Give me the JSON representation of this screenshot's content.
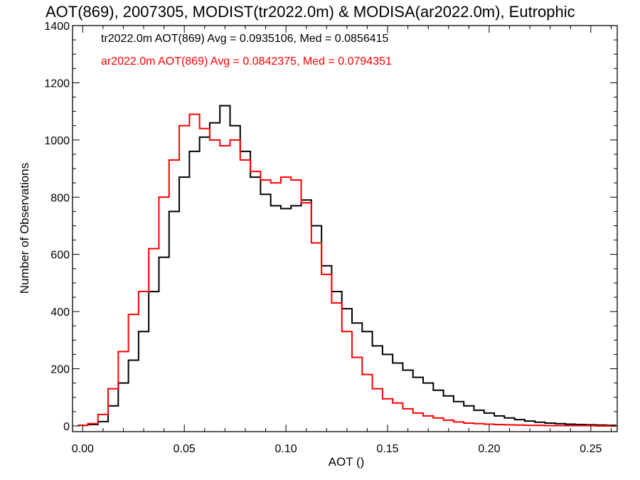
{
  "chart_data": {
    "type": "step-histogram",
    "title": "AOT(869), 2007305, MODIST(tr2022.0m) & MODISA(ar2022.0m), Eutrophic",
    "xlabel": "AOT ()",
    "ylabel": "Number of Observations",
    "xlim": [
      -0.005,
      0.263
    ],
    "ylim": [
      -20,
      1400
    ],
    "xticks": [
      0.0,
      0.05,
      0.1,
      0.15,
      0.2,
      0.25
    ],
    "xtick_labels": [
      "0.00",
      "0.05",
      "0.10",
      "0.15",
      "0.20",
      "0.25"
    ],
    "yticks": [
      0,
      200,
      400,
      600,
      800,
      1000,
      1200,
      1400
    ],
    "ytick_labels": [
      "0",
      "200",
      "400",
      "600",
      "800",
      "1000",
      "1200",
      "1400"
    ],
    "grid": false,
    "legend_position": "top-left",
    "series": [
      {
        "name": "tr2022.0m",
        "stats_text": "tr2022.0m AOT(869) Avg = 0.0935106, Med = 0.0856415",
        "color": "#000000",
        "x": [
          0.0,
          0.005,
          0.01,
          0.015,
          0.02,
          0.025,
          0.03,
          0.035,
          0.04,
          0.045,
          0.05,
          0.055,
          0.06,
          0.065,
          0.07,
          0.075,
          0.08,
          0.085,
          0.09,
          0.095,
          0.1,
          0.105,
          0.11,
          0.115,
          0.12,
          0.125,
          0.13,
          0.135,
          0.14,
          0.145,
          0.15,
          0.155,
          0.16,
          0.165,
          0.17,
          0.175,
          0.18,
          0.185,
          0.19,
          0.195,
          0.2,
          0.205,
          0.21,
          0.215,
          0.22,
          0.225,
          0.23,
          0.235,
          0.24,
          0.245,
          0.25,
          0.255,
          0.26
        ],
        "y": [
          2,
          5,
          15,
          70,
          150,
          230,
          330,
          470,
          590,
          750,
          870,
          960,
          1010,
          1060,
          1120,
          1050,
          960,
          870,
          810,
          770,
          760,
          770,
          790,
          700,
          560,
          470,
          410,
          360,
          330,
          280,
          250,
          220,
          195,
          170,
          150,
          125,
          105,
          85,
          70,
          55,
          45,
          35,
          28,
          22,
          17,
          13,
          10,
          8,
          6,
          5,
          4,
          3,
          2
        ]
      },
      {
        "name": "ar2022.0m",
        "stats_text": "ar2022.0m AOT(869) Avg = 0.0842375, Med = 0.0794351",
        "color": "#ff0000",
        "x": [
          0.0,
          0.005,
          0.01,
          0.015,
          0.02,
          0.025,
          0.03,
          0.035,
          0.04,
          0.045,
          0.05,
          0.055,
          0.06,
          0.065,
          0.07,
          0.075,
          0.08,
          0.085,
          0.09,
          0.095,
          0.1,
          0.105,
          0.11,
          0.115,
          0.12,
          0.125,
          0.13,
          0.135,
          0.14,
          0.145,
          0.15,
          0.155,
          0.16,
          0.165,
          0.17,
          0.175,
          0.18,
          0.185,
          0.19,
          0.195,
          0.2,
          0.205,
          0.21,
          0.215,
          0.22,
          0.225,
          0.23,
          0.235,
          0.24,
          0.245,
          0.25,
          0.255,
          0.26
        ],
        "y": [
          2,
          8,
          40,
          130,
          260,
          390,
          470,
          620,
          800,
          930,
          1050,
          1090,
          1040,
          1000,
          980,
          1000,
          930,
          890,
          860,
          850,
          870,
          860,
          780,
          640,
          530,
          430,
          330,
          240,
          180,
          130,
          95,
          80,
          60,
          45,
          35,
          28,
          20,
          14,
          10,
          8,
          6,
          5,
          4,
          3,
          2,
          2,
          1,
          1,
          1,
          1,
          1,
          0,
          0
        ]
      }
    ]
  }
}
